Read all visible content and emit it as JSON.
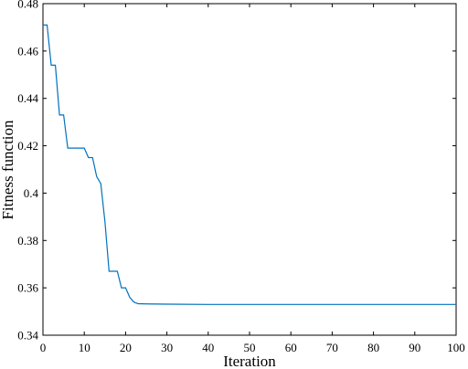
{
  "chart_data": {
    "type": "line",
    "xlabel": "Iteration",
    "ylabel": "Fitness function",
    "xlim": [
      0,
      100
    ],
    "ylim": [
      0.34,
      0.48
    ],
    "xticks": [
      0,
      10,
      20,
      30,
      40,
      50,
      60,
      70,
      80,
      90,
      100
    ],
    "yticks": [
      0.34,
      0.36,
      0.38,
      0.4,
      0.42,
      0.44,
      0.46,
      0.48
    ],
    "ytick_labels": [
      "0.34",
      "0.36",
      "0.38",
      "0.4",
      "0.42",
      "0.44",
      "0.46",
      "0.48"
    ],
    "grid": false,
    "series": [
      {
        "color": "#0072BD",
        "x": [
          0,
          1,
          2,
          3,
          4,
          5,
          6,
          7,
          8,
          9,
          10,
          11,
          12,
          13,
          14,
          15,
          16,
          17,
          18,
          19,
          20,
          21,
          22,
          23,
          25,
          30,
          40,
          50,
          60,
          70,
          80,
          90,
          100
        ],
        "y": [
          0.471,
          0.471,
          0.454,
          0.454,
          0.433,
          0.433,
          0.419,
          0.419,
          0.419,
          0.419,
          0.419,
          0.415,
          0.415,
          0.407,
          0.404,
          0.388,
          0.367,
          0.367,
          0.367,
          0.36,
          0.36,
          0.356,
          0.354,
          0.3533,
          0.3532,
          0.3531,
          0.353,
          0.353,
          0.353,
          0.353,
          0.353,
          0.353,
          0.353
        ]
      }
    ]
  }
}
